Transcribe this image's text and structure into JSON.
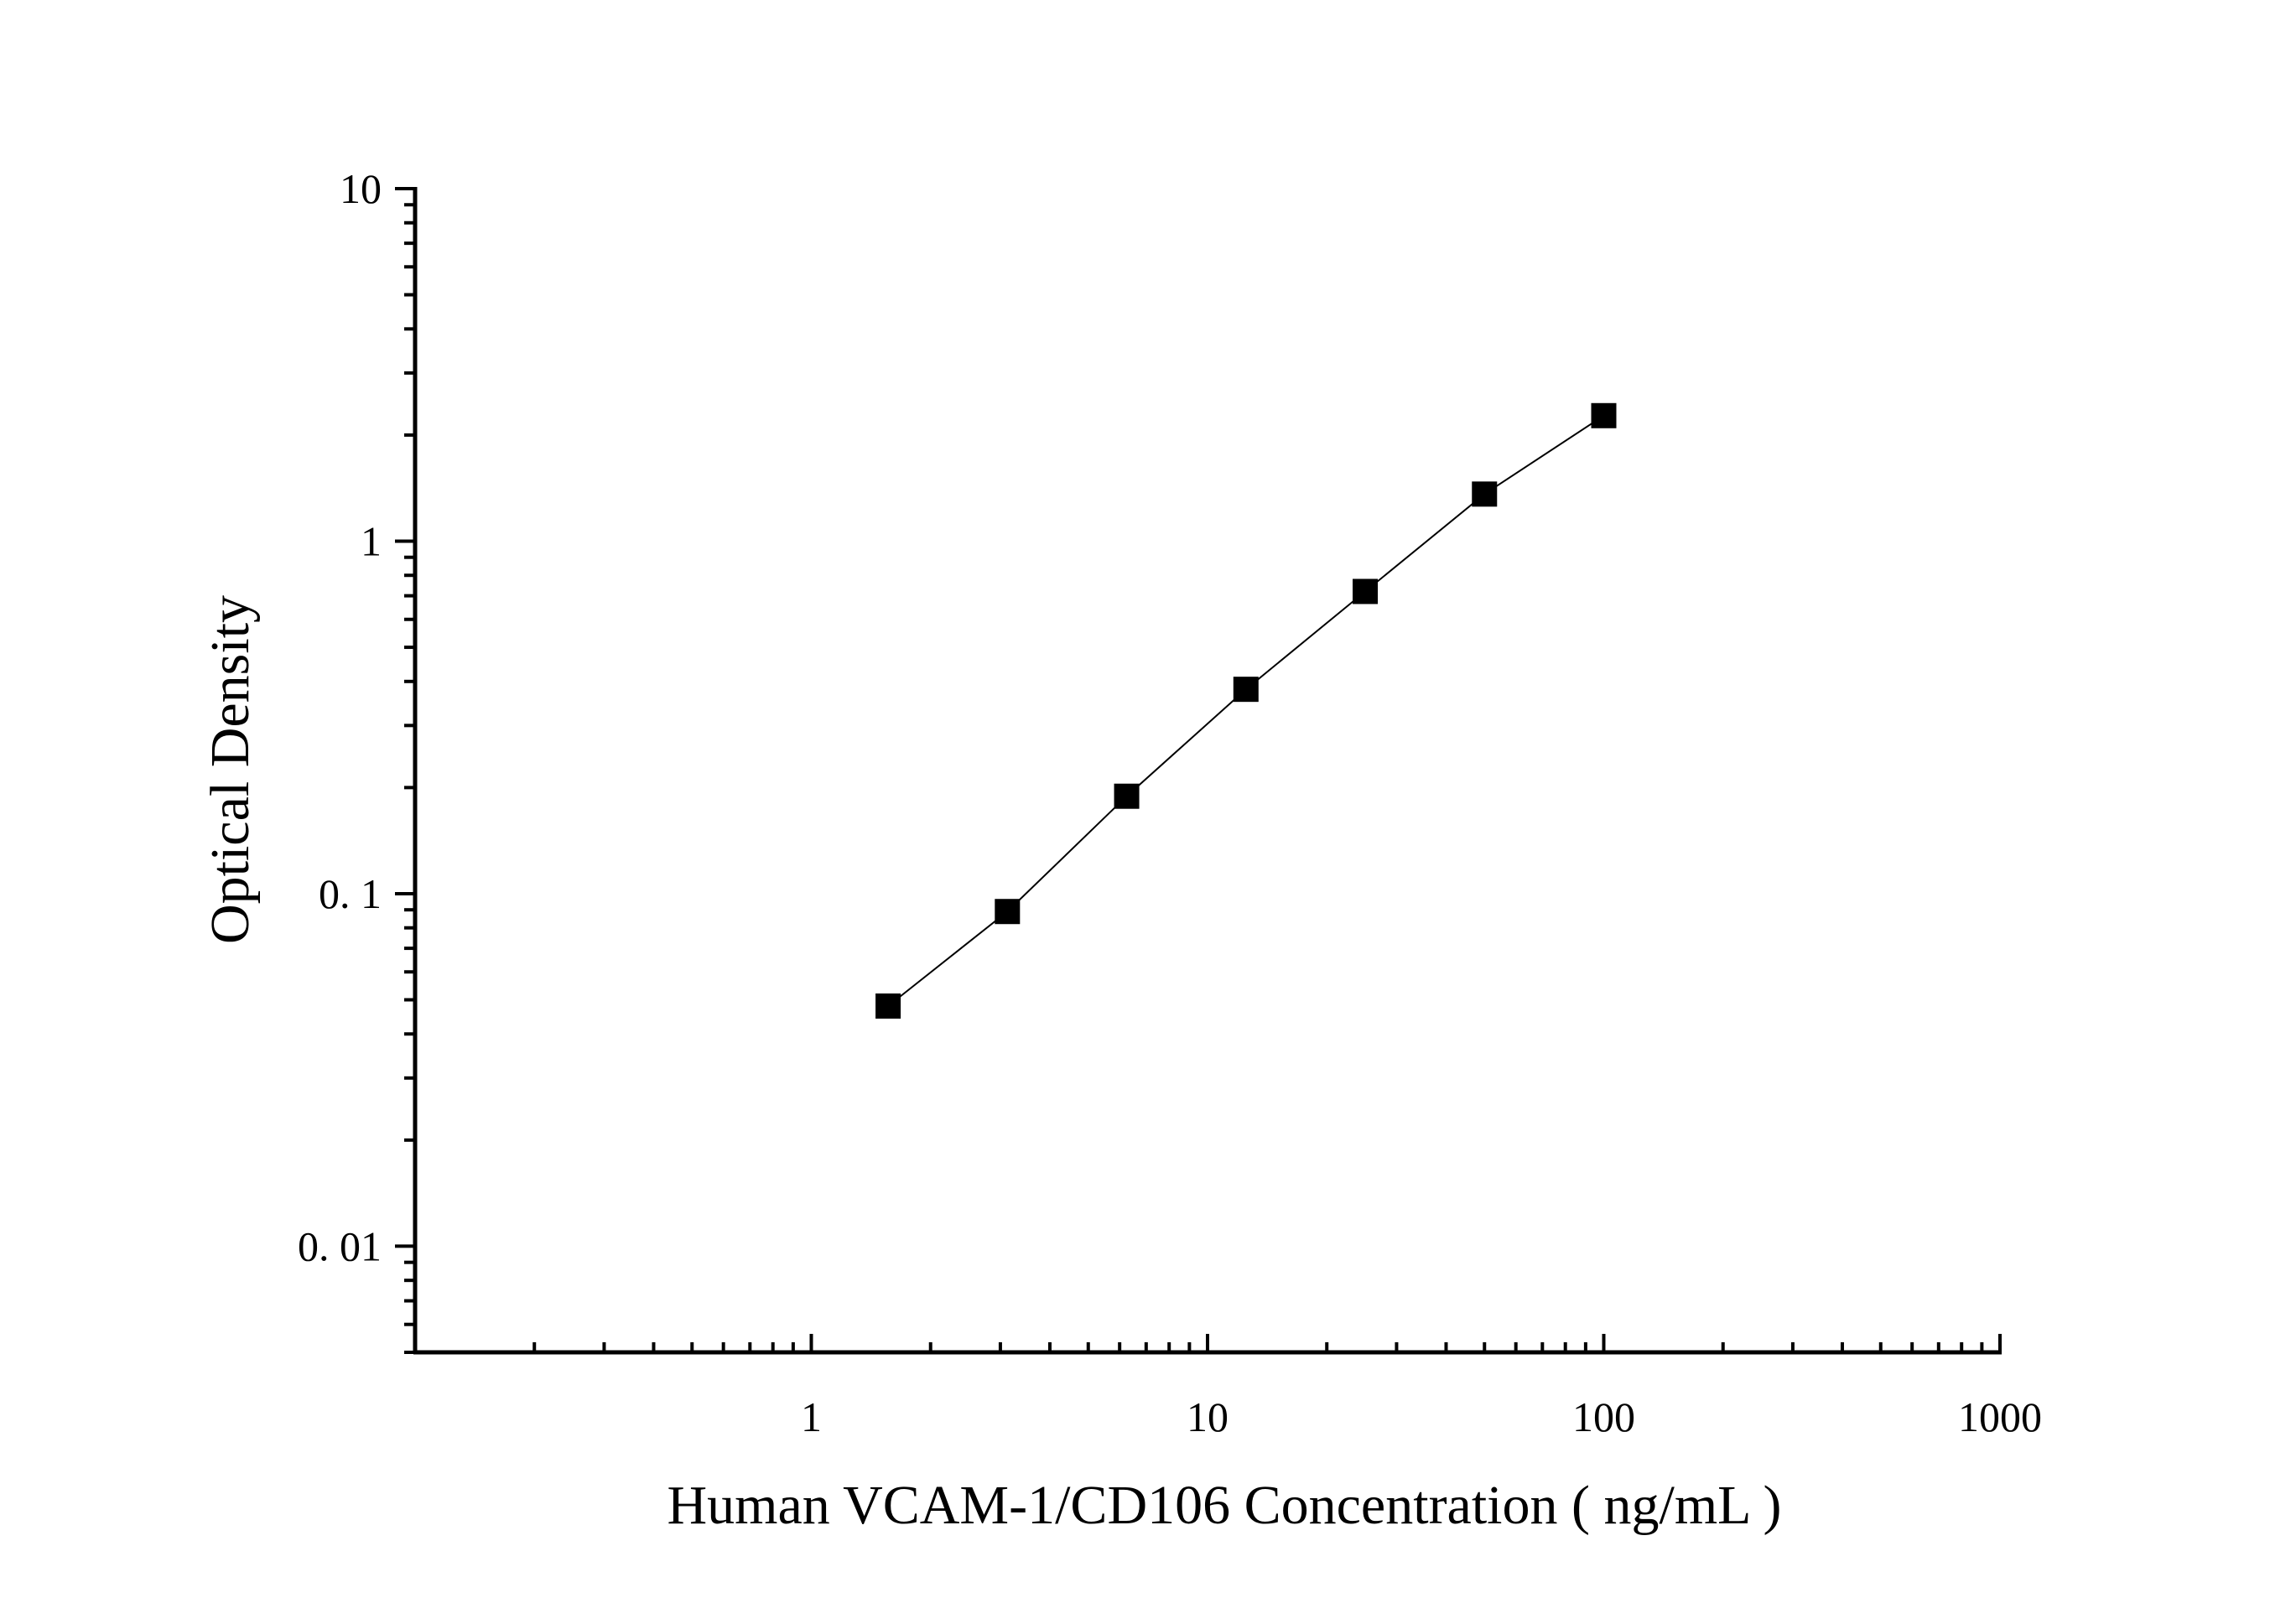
{
  "chart_data": {
    "type": "scatter",
    "title": "",
    "xlabel": "Human VCAM-1/CD106 Concentration ( ng/mL )",
    "ylabel": "Optical Density",
    "x_scale": "log",
    "y_scale": "log",
    "xlim": [
      0.1,
      1000
    ],
    "ylim": [
      0.005,
      10
    ],
    "x_ticks": [
      {
        "value": 1,
        "label": "1"
      },
      {
        "value": 10,
        "label": "10"
      },
      {
        "value": 100,
        "label": "100"
      },
      {
        "value": 1000,
        "label": "1000"
      }
    ],
    "y_ticks": [
      {
        "value": 0.01,
        "label": "0. 01"
      },
      {
        "value": 0.1,
        "label": "0. 1"
      },
      {
        "value": 1,
        "label": "1"
      },
      {
        "value": 10,
        "label": "10"
      }
    ],
    "grid": false,
    "legend": "none",
    "series": [
      {
        "marker": "square",
        "line": true,
        "color": "#000000",
        "points": [
          {
            "x": 1.5625,
            "y": 0.048
          },
          {
            "x": 3.125,
            "y": 0.089
          },
          {
            "x": 6.25,
            "y": 0.189
          },
          {
            "x": 12.5,
            "y": 0.38
          },
          {
            "x": 25,
            "y": 0.72
          },
          {
            "x": 50,
            "y": 1.36
          },
          {
            "x": 100,
            "y": 2.27
          }
        ]
      }
    ]
  }
}
